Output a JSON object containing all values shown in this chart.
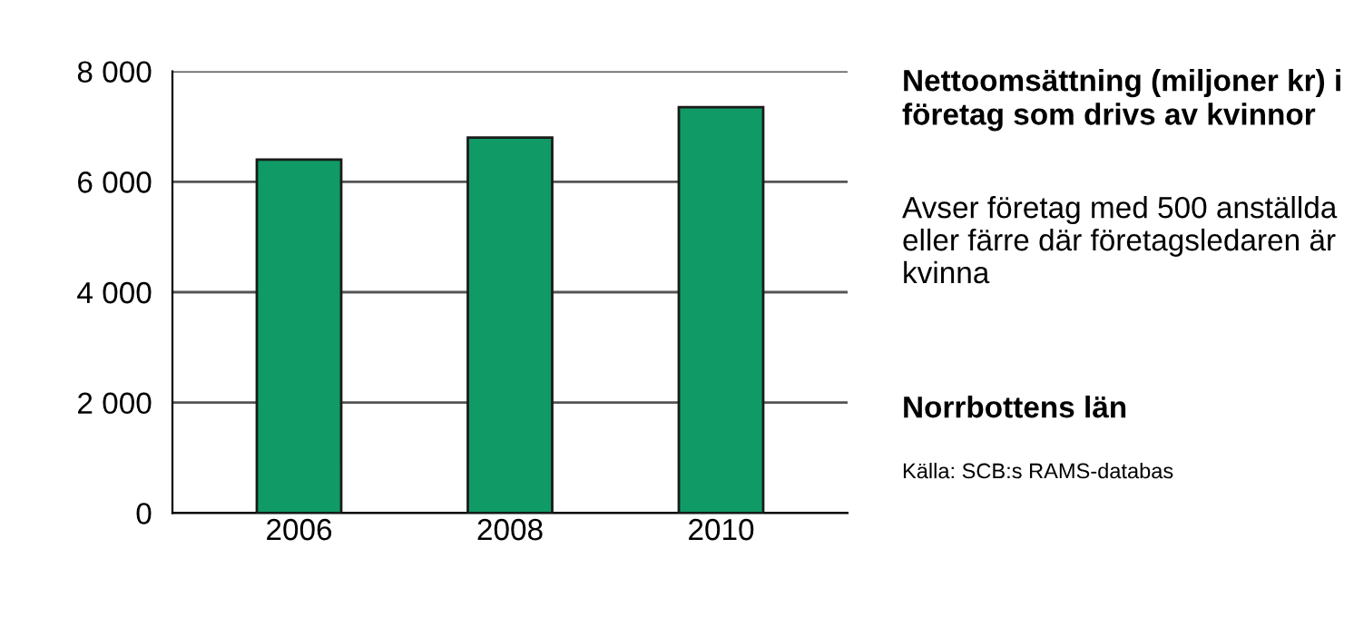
{
  "chart_data": {
    "type": "bar",
    "title": "Nettoomsättning (miljoner kr) i företag som drivs av kvinnor",
    "subtitle": "Avser företag med 500 anställda eller färre där företagsledaren är kvinna",
    "annotations": [
      "Norrbottens län",
      "Källa: SCB:s RAMS-databas"
    ],
    "categories": [
      "2006",
      "2008",
      "2010"
    ],
    "values": [
      6400,
      6800,
      7350
    ],
    "color": "#0f9a66",
    "ylim": [
      0,
      8000
    ],
    "yticks": [
      0,
      {
        "value": 2000,
        "label": "2 000"
      },
      {
        "value": 4000,
        "label": "4 000"
      },
      {
        "value": 6000,
        "label": "6 000"
      },
      {
        "value": 8000,
        "label": "8 000"
      }
    ],
    "grid": "y"
  }
}
